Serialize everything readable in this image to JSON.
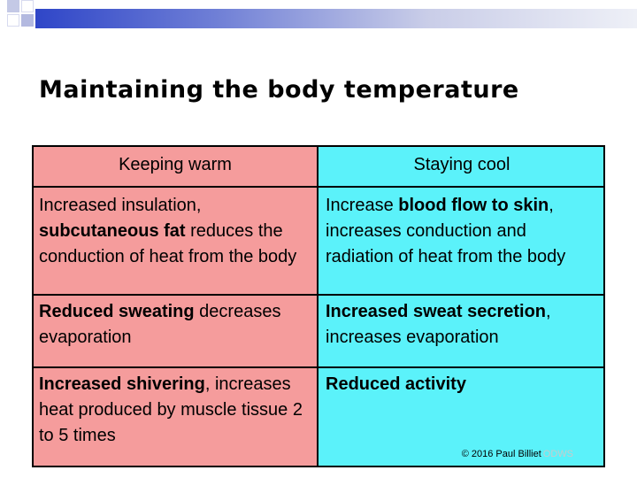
{
  "title": "Maintaining the body temperature",
  "table": {
    "headers": {
      "left": "Keeping warm",
      "right": "Staying cool"
    },
    "rows": [
      {
        "left": {
          "pre": "Increased insulation, ",
          "bold": "subcutaneous fat",
          "post": " reduces the conduction of heat from the body"
        },
        "right": {
          "pre": "Increase ",
          "bold": "blood flow to skin",
          "post": ", increases conduction and radiation of heat from the body"
        }
      },
      {
        "left": {
          "pre": "",
          "bold": "Reduced sweating",
          "post": " decreases evaporation"
        },
        "right": {
          "pre": "",
          "bold": "Increased sweat secretion",
          "post": ", increases evaporation"
        }
      },
      {
        "left": {
          "pre": "",
          "bold": "Increased shivering",
          "post": ", increases heat produced by muscle tissue 2 to 5 times"
        },
        "right": {
          "pre": "",
          "bold": "Reduced activity",
          "post": ""
        }
      }
    ]
  },
  "copyright": {
    "text": "© 2016 Paul Billiet",
    "license": "ODWS"
  },
  "colors": {
    "left_column": "#f59c9c",
    "right_column": "#5bf2fa",
    "header_bar": "#2f46c8"
  }
}
